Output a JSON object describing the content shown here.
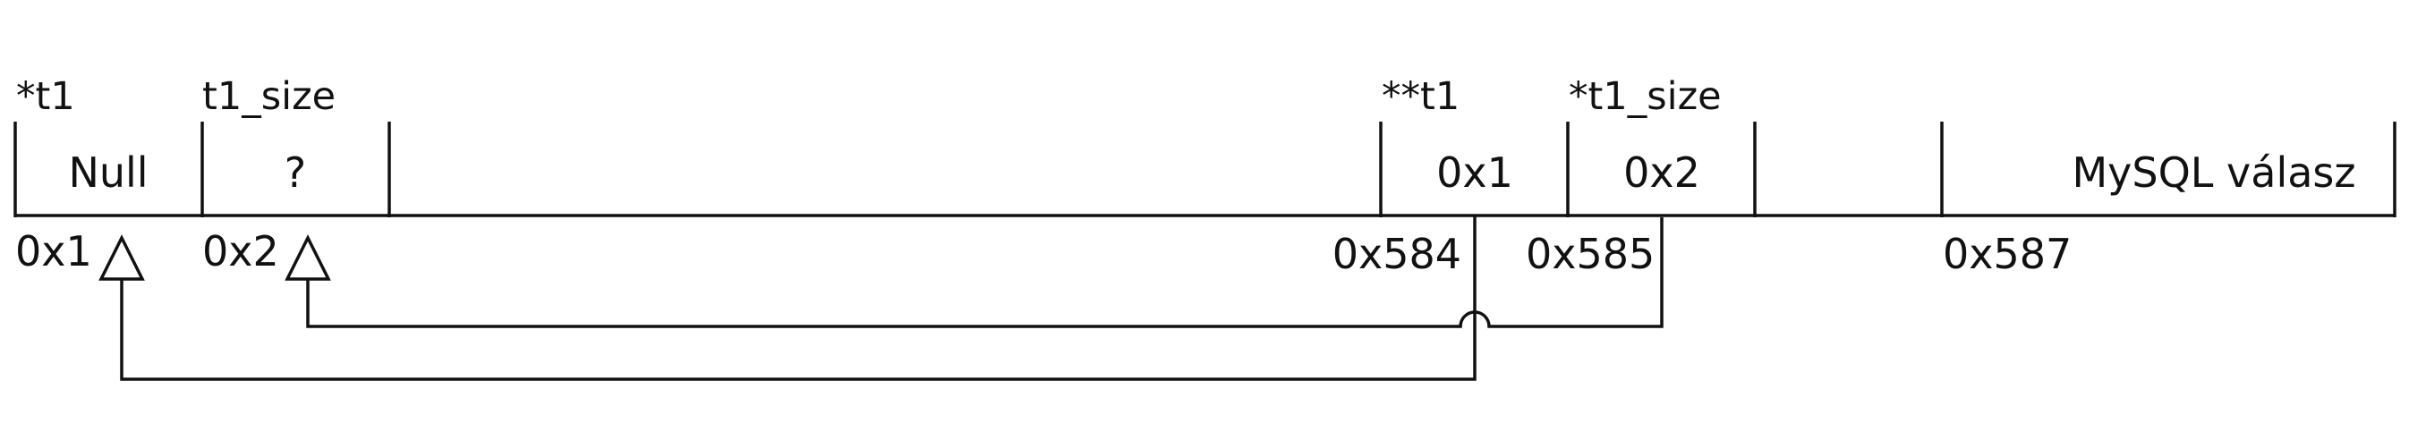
{
  "cells": [
    {
      "id": "t1",
      "label": "*t1",
      "value": "Null",
      "address": "0x1"
    },
    {
      "id": "t1-size",
      "label": "t1_size",
      "value": "?",
      "address": "0x2"
    },
    {
      "id": "pp-t1",
      "label": "**t1",
      "value": "0x1",
      "address": "0x584"
    },
    {
      "id": "p-t1-size",
      "label": "*t1_size",
      "value": "0x2",
      "address": "0x585"
    },
    {
      "id": "mysql",
      "label": "",
      "value": "MySQL válasz",
      "address": "0x587"
    }
  ]
}
